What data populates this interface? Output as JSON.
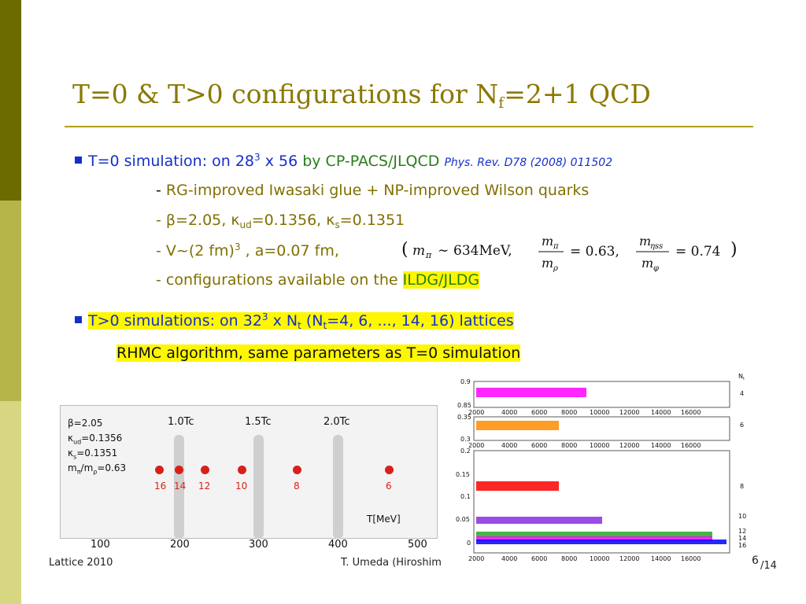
{
  "slide": {
    "title_main": "T=0 & T>0 configurations for N",
    "title_sub": "f",
    "title_end": "=2+1 QCD"
  },
  "bullet1": {
    "text1": "T=0 simulation: on 28",
    "sup": "3",
    "text2": " x 56",
    "by": " by CP-PACS/JLQCD ",
    "ref": "Phys. Rev. D78 (2008) 011502"
  },
  "sub1": {
    "dash": "- ",
    "text": "RG-improved Iwasaki glue + NP-improved Wilson quarks"
  },
  "sub2": {
    "a": "- β=2.05, κ",
    "a_sub": "ud",
    "b": "=0.1356,  κ",
    "b_sub": "s",
    "c": "=0.1351"
  },
  "sub3": {
    "text": "- V~(2 fm)",
    "sup": "3",
    "tail": " ,  a=0.07 fm,"
  },
  "sub4": {
    "text": "- configurations available on the ",
    "link": "ILDG/JLDG"
  },
  "formula": {
    "mpi_val": "634MeV,",
    "ratio1": "= 0.63,",
    "ratio2": "= 0.74"
  },
  "bullet2": {
    "t1": "T>0 simulations: on 32",
    "sup": "3",
    "t2": " x N",
    "sub": "t",
    "t3": "  (N",
    "sub2": "t",
    "t4": "=4, 6, ..., 14, 16) lattices"
  },
  "rhmc": "RHMC algorithm, same parameters as T=0 simulation",
  "phase": {
    "params": [
      "β=2.05",
      "κ_ud=0.1356",
      "κ_s=0.1351",
      "m_π/m_ρ=0.63"
    ],
    "tc_labels": [
      "1.0Tc",
      "1.5Tc",
      "2.0Tc"
    ],
    "points": [
      "16",
      "14",
      "12",
      "10",
      "8",
      "6"
    ],
    "xticks": [
      "100",
      "200",
      "300",
      "400",
      "500"
    ],
    "xlabel": "T[MeV]"
  },
  "histories": {
    "nt_header": "N",
    "nt_header_sub": "t",
    "panel1": {
      "yticks": [
        "0.9",
        "0.85"
      ],
      "nt": "4"
    },
    "panel2": {
      "yticks": [
        "0.35",
        "0.3"
      ],
      "nt": "6"
    },
    "panel3": {
      "yticks": [
        "0.2",
        "0.15",
        "0.1",
        "0.05",
        "0"
      ],
      "nt": [
        "8",
        "10",
        "12",
        "14",
        "16"
      ]
    },
    "xticks": [
      "2000",
      "4000",
      "6000",
      "8000",
      "10000",
      "12000",
      "14000",
      "16000"
    ]
  },
  "footer": {
    "left": "Lattice 2010",
    "center": "T. Umeda (Hiroshim",
    "page": "6",
    "total": "/14"
  },
  "colors": {
    "title": "#8b7800",
    "blue": "#1530c8",
    "green": "#2a7d1c",
    "dot": "#d8201a",
    "nt4": "#ff00ff",
    "nt6": "#ff8c00",
    "nt8": "#ff0000",
    "nt10": "#8a2be2",
    "nt12": "#22aa22",
    "nt14": "#ff00ff",
    "nt16": "#0000ff"
  }
}
